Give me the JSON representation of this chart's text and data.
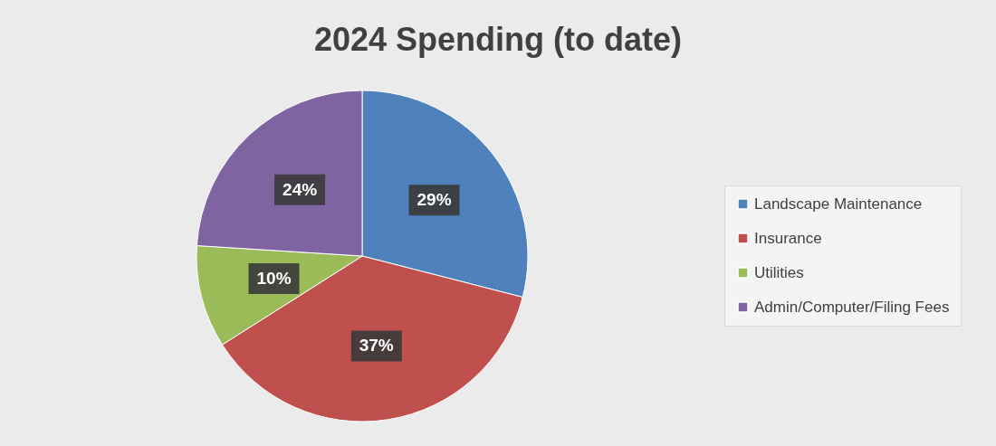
{
  "chart_data": {
    "type": "pie",
    "title": "2024 Spending (to date)",
    "categories": [
      "Landscape Maintenance",
      "Insurance",
      "Utilities",
      "Admin/Computer/Filing Fees"
    ],
    "values": [
      29,
      37,
      10,
      24
    ],
    "colors": [
      "#4f81bd",
      "#c0504d",
      "#9bbb59",
      "#8064a2"
    ],
    "value_labels": [
      "29%",
      "37%",
      "10%",
      "24%"
    ],
    "legend": "right"
  }
}
